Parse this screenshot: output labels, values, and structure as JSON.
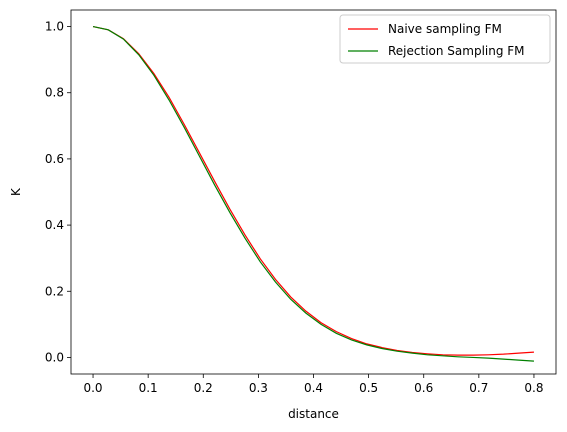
{
  "chart_data": {
    "type": "line",
    "title": "",
    "xlabel": "distance",
    "ylabel": "K",
    "xlim": [
      -0.04,
      0.84
    ],
    "ylim": [
      -0.05,
      1.05
    ],
    "xticks": [
      0.0,
      0.1,
      0.2,
      0.3,
      0.4,
      0.5,
      0.6,
      0.7,
      0.8
    ],
    "xtick_labels": [
      "0.0",
      "0.1",
      "0.2",
      "0.3",
      "0.4",
      "0.5",
      "0.6",
      "0.7",
      "0.8"
    ],
    "yticks": [
      0.0,
      0.2,
      0.4,
      0.6,
      0.8,
      1.0
    ],
    "ytick_labels": [
      "0.0",
      "0.2",
      "0.4",
      "0.6",
      "0.8",
      "1.0"
    ],
    "grid": false,
    "legend_position": "top-right",
    "x": [
      0.0,
      0.0276,
      0.0552,
      0.0828,
      0.1103,
      0.1379,
      0.1655,
      0.1931,
      0.2207,
      0.2483,
      0.2759,
      0.3034,
      0.331,
      0.3586,
      0.3862,
      0.4138,
      0.4414,
      0.469,
      0.4966,
      0.5241,
      0.5517,
      0.5793,
      0.6069,
      0.6345,
      0.6621,
      0.6897,
      0.7172,
      0.7448,
      0.7724,
      0.8
    ],
    "series": [
      {
        "name": "Naive sampling FM",
        "color": "#ff0000",
        "values": [
          1.0,
          0.99,
          0.963,
          0.918,
          0.858,
          0.786,
          0.704,
          0.618,
          0.532,
          0.448,
          0.37,
          0.298,
          0.236,
          0.183,
          0.14,
          0.105,
          0.078,
          0.057,
          0.041,
          0.03,
          0.021,
          0.015,
          0.011,
          0.008,
          0.007,
          0.007,
          0.008,
          0.01,
          0.013,
          0.016
        ]
      },
      {
        "name": "Rejection Sampling FM",
        "color": "#008000",
        "values": [
          1.0,
          0.99,
          0.962,
          0.915,
          0.853,
          0.778,
          0.695,
          0.608,
          0.521,
          0.438,
          0.36,
          0.289,
          0.228,
          0.176,
          0.134,
          0.1,
          0.073,
          0.053,
          0.038,
          0.027,
          0.019,
          0.013,
          0.008,
          0.005,
          0.002,
          0.0,
          -0.002,
          -0.005,
          -0.008,
          -0.011
        ]
      }
    ]
  }
}
